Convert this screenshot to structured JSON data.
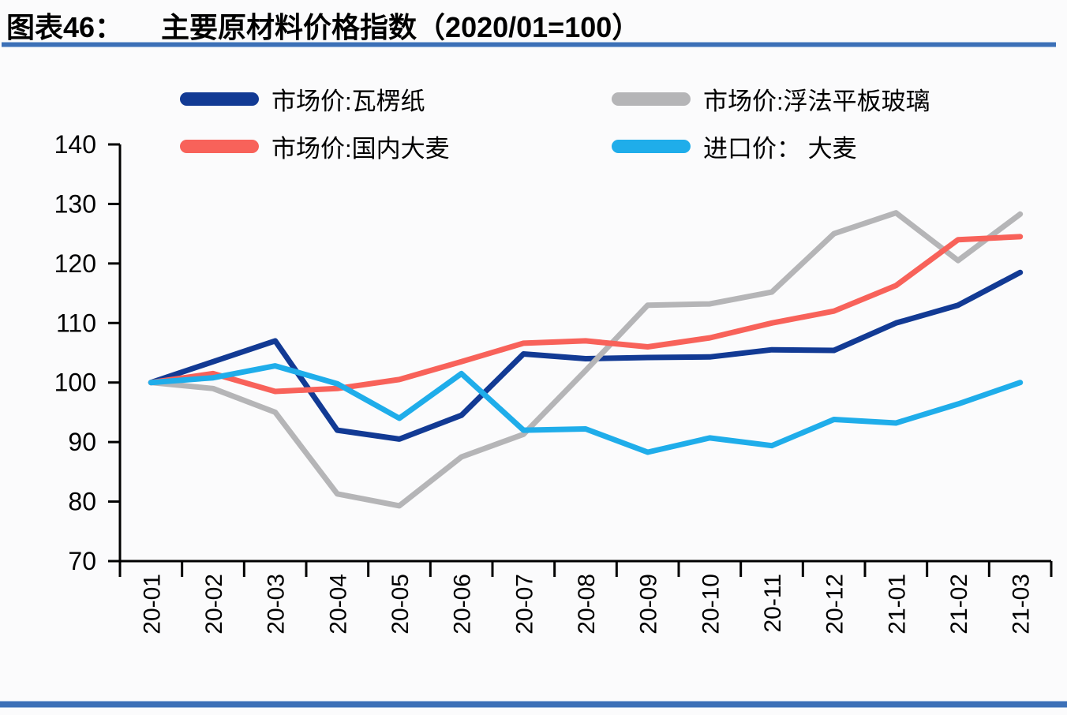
{
  "header": {
    "label": "图表46：",
    "title": "主要原材料价格指数（2020/01=100）"
  },
  "colors": {
    "rule_blue": "#3c70b7",
    "axis": "#000000"
  },
  "chart_data": {
    "type": "line",
    "title": "主要原材料价格指数（2020/01=100）",
    "xlabel": "",
    "ylabel": "",
    "ylim": [
      70,
      140
    ],
    "yticks": [
      70,
      80,
      90,
      100,
      110,
      120,
      130,
      140
    ],
    "grid": false,
    "legend_position": "top",
    "categories": [
      "20-01",
      "20-02",
      "20-03",
      "20-04",
      "20-05",
      "20-06",
      "20-07",
      "20-08",
      "20-09",
      "20-10",
      "20-11",
      "20-12",
      "21-01",
      "21-02",
      "21-03"
    ],
    "series": [
      {
        "name": "市场价:瓦楞纸",
        "color": "#123a94",
        "values": [
          100,
          103.5,
          107,
          92,
          90.5,
          94.5,
          104.8,
          104,
          104.2,
          104.3,
          105.5,
          105.4,
          110,
          113,
          118.5
        ]
      },
      {
        "name": "市场价:浮法平板玻璃",
        "color": "#b5b5b7",
        "values": [
          100,
          99,
          95,
          81.3,
          79.3,
          87.5,
          91.3,
          102,
          113,
          113.2,
          115.2,
          125,
          128.5,
          120.5,
          128.3
        ]
      },
      {
        "name": "市场价:国内大麦",
        "color": "#f8625a",
        "values": [
          100,
          101.5,
          98.5,
          99,
          100.5,
          103.5,
          106.6,
          107,
          106,
          107.5,
          110,
          112,
          116.3,
          124,
          124.5
        ]
      },
      {
        "name": "进口价： 大麦",
        "color": "#1fadea",
        "values": [
          100,
          100.8,
          102.8,
          99.8,
          94,
          101.5,
          92,
          92.2,
          88.3,
          90.7,
          89.4,
          93.8,
          93.2,
          96.4,
          100
        ]
      }
    ]
  }
}
